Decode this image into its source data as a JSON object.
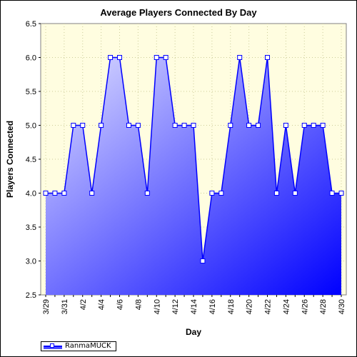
{
  "chart_data": {
    "type": "area",
    "title": "Average Players Connected By Day",
    "xlabel": "Day",
    "ylabel": "Players Connected",
    "ylim": [
      2.5,
      6.5
    ],
    "yticks": [
      "2.5",
      "3.0",
      "3.5",
      "4.0",
      "4.5",
      "5.0",
      "5.5",
      "6.0",
      "6.5"
    ],
    "categories": [
      "3/29",
      "3/30",
      "3/31",
      "4/1",
      "4/2",
      "4/3",
      "4/4",
      "4/5",
      "4/6",
      "4/7",
      "4/8",
      "4/9",
      "4/10",
      "4/11",
      "4/12",
      "4/13",
      "4/14",
      "4/15",
      "4/16",
      "4/17",
      "4/18",
      "4/19",
      "4/20",
      "4/21",
      "4/22",
      "4/23",
      "4/24",
      "4/25",
      "4/26",
      "4/27",
      "4/28",
      "4/29",
      "4/30"
    ],
    "tick_labels": [
      "3/29",
      "3/31",
      "4/2",
      "4/4",
      "4/6",
      "4/8",
      "4/10",
      "4/12",
      "4/14",
      "4/16",
      "4/18",
      "4/20",
      "4/22",
      "4/24",
      "4/26",
      "4/28",
      "4/30"
    ],
    "grid": true,
    "legend_position": "bottom-left",
    "series": [
      {
        "name": "RanmaMUCK",
        "values": [
          4,
          4,
          4,
          5,
          5,
          4,
          5,
          6,
          6,
          5,
          5,
          4,
          6,
          6,
          5,
          5,
          5,
          3,
          4,
          4,
          5,
          6,
          5,
          5,
          6,
          4,
          5,
          4,
          5,
          5,
          5,
          4,
          4
        ]
      }
    ],
    "colors": {
      "plot_background": "#fffde0",
      "line": "#0000ff",
      "fill_top": "#e0e0ff",
      "fill_bottom": "#0000ff",
      "grid": "#cccc99"
    }
  }
}
